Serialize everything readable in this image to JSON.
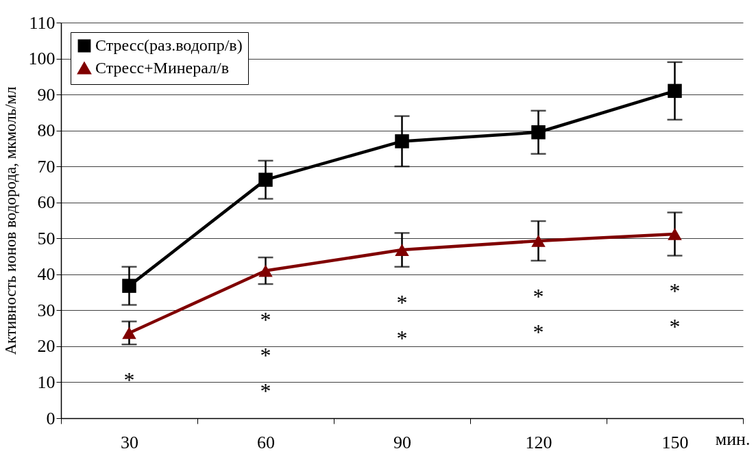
{
  "chart_data": {
    "type": "line",
    "ylabel": "Активность ионов водорода, мкмоль/мл",
    "xlabel": "мин.",
    "categories": [
      "30",
      "60",
      "90",
      "120",
      "150"
    ],
    "series": [
      {
        "name": "Стресс(раз.водопр/в)",
        "color": "#000000",
        "marker": "square",
        "values": [
          36.8,
          66.3,
          77,
          79.5,
          91
        ],
        "errors": [
          5.3,
          5.3,
          7,
          6,
          8
        ]
      },
      {
        "name": "Стресс+Минерал/в",
        "color": "#800000",
        "marker": "triangle",
        "values": [
          23.7,
          41,
          46.8,
          49.3,
          51.2
        ],
        "errors": [
          3.2,
          3.7,
          4.7,
          5.5,
          6
        ]
      }
    ],
    "ylim": [
      0,
      110
    ],
    "yticks": [
      0,
      10,
      20,
      30,
      40,
      50,
      60,
      70,
      80,
      90,
      100,
      110
    ],
    "grid": "y",
    "legend": "top left",
    "line_style": "solid",
    "annotations": [
      "*",
      "*\n*\n*",
      "*\n*",
      "*\n*",
      "*\n*"
    ]
  }
}
